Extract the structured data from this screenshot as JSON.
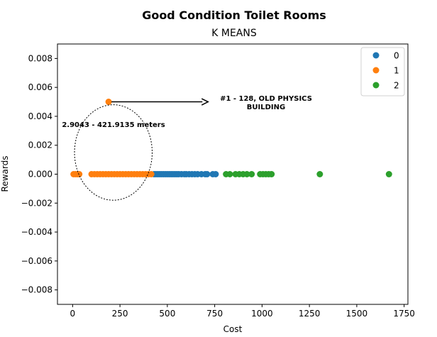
{
  "chart_data": {
    "type": "scatter",
    "title": "Good Condition Toilet Rooms",
    "subtitle": "K MEANS",
    "xlabel": "Cost",
    "ylabel": "Rewards",
    "xlim": [
      -80,
      1770
    ],
    "ylim": [
      -0.009,
      0.009
    ],
    "x_ticks": [
      0,
      250,
      500,
      750,
      1000,
      1250,
      1500,
      1750
    ],
    "x_tick_labels": [
      "0",
      "250",
      "500",
      "750",
      "1000",
      "1250",
      "1500",
      "1750"
    ],
    "y_ticks": [
      0.008,
      0.006,
      0.004,
      0.002,
      0.0,
      -0.002,
      -0.004,
      -0.006,
      -0.008
    ],
    "y_tick_labels": [
      "0.008",
      "0.006",
      "0.004",
      "0.002",
      "0.000",
      "−0.002",
      "−0.004",
      "−0.006",
      "−0.008"
    ],
    "grid": false,
    "legend_position": "top-right",
    "series": [
      {
        "name": "0",
        "color": "#1f77b4",
        "points": [
          [
            430,
            0
          ],
          [
            440,
            0
          ],
          [
            450,
            0
          ],
          [
            460,
            0
          ],
          [
            470,
            0
          ],
          [
            480,
            0
          ],
          [
            490,
            0
          ],
          [
            500,
            0
          ],
          [
            510,
            0
          ],
          [
            520,
            0
          ],
          [
            530,
            0
          ],
          [
            540,
            0
          ],
          [
            550,
            0
          ],
          [
            560,
            0
          ],
          [
            575,
            0
          ],
          [
            590,
            0
          ],
          [
            600,
            0
          ],
          [
            615,
            0
          ],
          [
            630,
            0
          ],
          [
            645,
            0
          ],
          [
            660,
            0
          ],
          [
            680,
            0
          ],
          [
            700,
            0
          ],
          [
            710,
            0
          ],
          [
            740,
            0
          ],
          [
            755,
            0
          ]
        ]
      },
      {
        "name": "1",
        "color": "#ff7f0e",
        "points": [
          [
            5,
            0
          ],
          [
            15,
            0
          ],
          [
            25,
            0
          ],
          [
            35,
            0
          ],
          [
            100,
            0
          ],
          [
            115,
            0
          ],
          [
            130,
            0
          ],
          [
            145,
            0
          ],
          [
            160,
            0
          ],
          [
            175,
            0
          ],
          [
            190,
            0
          ],
          [
            205,
            0
          ],
          [
            220,
            0
          ],
          [
            235,
            0
          ],
          [
            250,
            0
          ],
          [
            265,
            0
          ],
          [
            280,
            0
          ],
          [
            295,
            0
          ],
          [
            310,
            0
          ],
          [
            325,
            0
          ],
          [
            340,
            0
          ],
          [
            355,
            0
          ],
          [
            370,
            0
          ],
          [
            385,
            0
          ],
          [
            400,
            0
          ],
          [
            415,
            0
          ],
          [
            190,
            0.005
          ]
        ]
      },
      {
        "name": "2",
        "color": "#2ca02c",
        "points": [
          [
            810,
            0
          ],
          [
            830,
            0
          ],
          [
            860,
            0
          ],
          [
            880,
            0
          ],
          [
            900,
            0
          ],
          [
            920,
            0
          ],
          [
            945,
            0
          ],
          [
            990,
            0
          ],
          [
            1005,
            0
          ],
          [
            1020,
            0
          ],
          [
            1035,
            0
          ],
          [
            1050,
            0
          ],
          [
            1305,
            0
          ],
          [
            1670,
            0
          ]
        ]
      }
    ],
    "annotations": [
      {
        "text_lines": [
          "#1 - 128, OLD PHYSICS",
          "BUILDING"
        ],
        "arrow_from": [
          190,
          0.005
        ],
        "arrow_to": [
          715,
          0.005
        ]
      },
      {
        "text": "2.9043 - 421.9135 meters",
        "ellipse_center": [
          215,
          0.0015
        ],
        "ellipse_radii": [
          205,
          0.0033
        ]
      }
    ]
  }
}
